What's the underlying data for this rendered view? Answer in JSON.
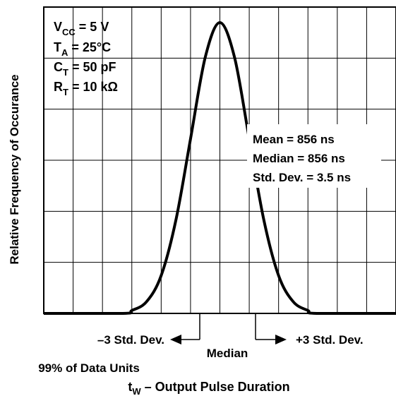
{
  "chart_data": {
    "type": "line",
    "title": "",
    "xlabel": {
      "main": "t",
      "sub": "W",
      "rest": " – Output Pulse Duration"
    },
    "ylabel": "Relative Frequency of Occurance",
    "grid": true,
    "xlim": [
      -6,
      6
    ],
    "ylim": [
      0,
      1
    ],
    "series": [
      {
        "x": [
          -6,
          -3.3,
          -3,
          -2.5,
          -2,
          -1.5,
          -1,
          -0.5,
          0,
          0.5,
          1,
          1.5,
          2,
          2.5,
          3,
          3.3,
          6
        ],
        "values": [
          0,
          0,
          0.01,
          0.04,
          0.13,
          0.32,
          0.6,
          0.88,
          1.0,
          0.88,
          0.6,
          0.32,
          0.13,
          0.04,
          0.01,
          0,
          0
        ]
      }
    ],
    "conditions": [
      {
        "main": "V",
        "sub": "CC",
        "rest": " = 5 V"
      },
      {
        "main": "T",
        "sub": "A",
        "rest": " = 25°C"
      },
      {
        "main": "C",
        "sub": "T",
        "rest": " = 50 pF"
      },
      {
        "main": "R",
        "sub": "T",
        "rest": " = 10 kΩ"
      }
    ],
    "stats": [
      "Mean = 856 ns",
      "Median = 856 ns",
      "Std. Dev. = 3.5 ns"
    ],
    "annotations": {
      "minus3": "–3 Std. Dev.",
      "plus3": "+3 Std. Dev.",
      "median": "Median",
      "coverage": "99% of Data Units"
    }
  }
}
